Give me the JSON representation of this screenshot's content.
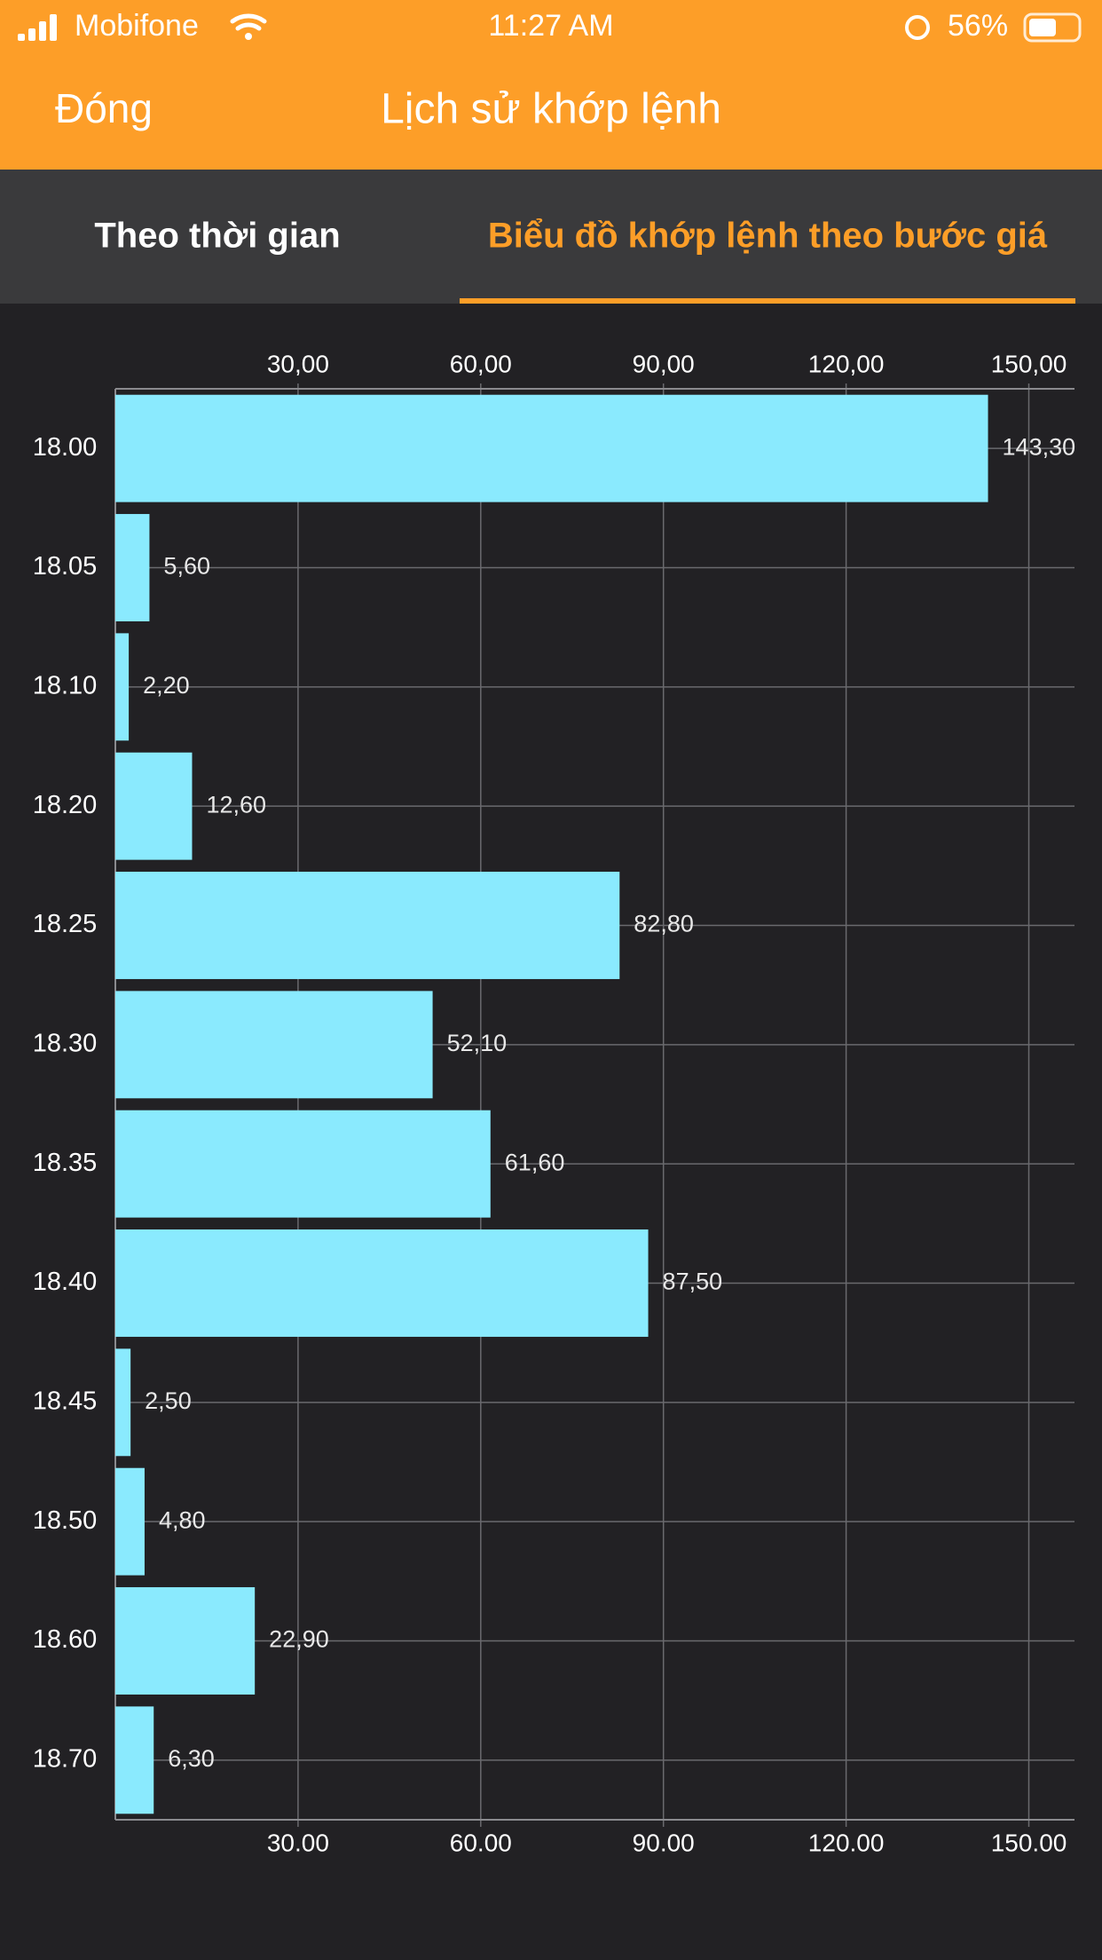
{
  "status_bar": {
    "carrier": "Mobifone",
    "time": "11:27 AM",
    "battery": "56%"
  },
  "header": {
    "close": "Đóng",
    "title": "Lịch sử khớp lệnh"
  },
  "tabs": [
    "Theo thời gian",
    "Biểu đồ khớp lệnh theo bước giá"
  ],
  "chart_data": {
    "type": "bar",
    "orientation": "horizontal",
    "categories": [
      "18.00",
      "18.05",
      "18.10",
      "18.20",
      "18.25",
      "18.30",
      "18.35",
      "18.40",
      "18.45",
      "18.50",
      "18.60",
      "18.70"
    ],
    "values": [
      143.3,
      5.6,
      2.2,
      12.6,
      82.8,
      52.1,
      61.6,
      87.5,
      2.5,
      4.8,
      22.9,
      6.3
    ],
    "value_labels": [
      "143,30",
      "5,60",
      "2,20",
      "12,60",
      "82,80",
      "52,10",
      "61,60",
      "87,50",
      "2,50",
      "4,80",
      "22,90",
      "6,30"
    ],
    "color": "#8aeafe",
    "xlim": [
      0,
      157.5
    ],
    "xticks": [
      {
        "value": 30,
        "label": "30.00"
      },
      {
        "value": 60,
        "label": "60.00"
      },
      {
        "value": 90,
        "label": "90.00"
      },
      {
        "value": 120,
        "label": "120.00"
      },
      {
        "value": 150,
        "label": "150.00"
      }
    ],
    "x2ticks": [
      {
        "value": 30,
        "label": "30,00"
      },
      {
        "value": 60,
        "label": "60,00"
      },
      {
        "value": 90,
        "label": "90,00"
      },
      {
        "value": 120,
        "label": "120,00"
      },
      {
        "value": 150,
        "label": "150,00"
      }
    ],
    "grid": true
  }
}
